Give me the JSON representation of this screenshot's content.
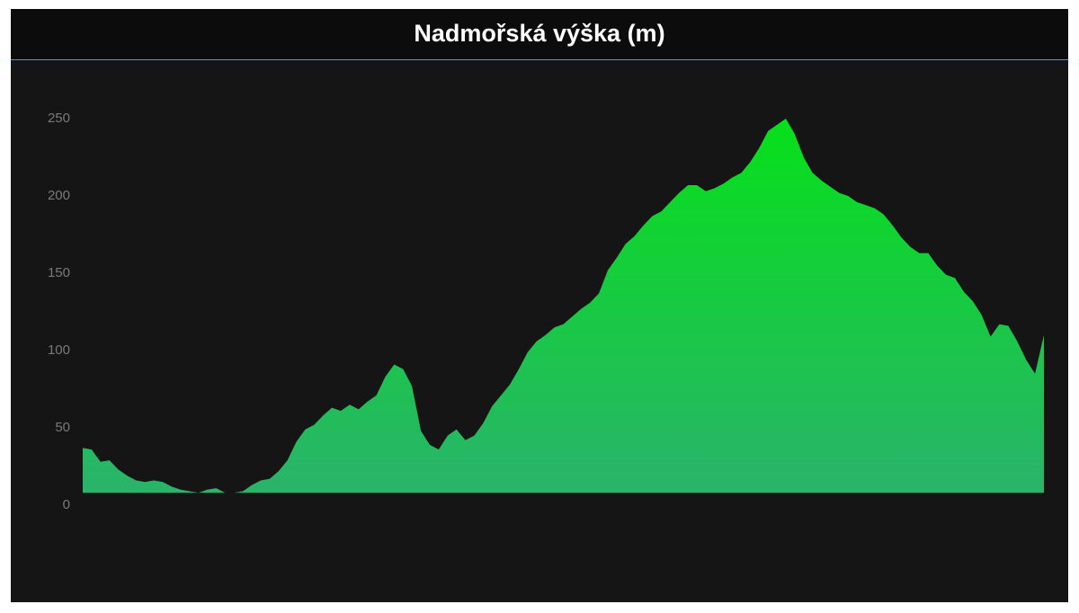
{
  "chart_data": {
    "type": "area",
    "title": "Nadmořská výška (m)",
    "values": [
      37,
      36,
      28,
      29,
      23,
      19,
      16,
      15,
      16,
      15,
      12,
      10,
      9,
      8,
      10,
      11,
      8,
      8,
      9,
      13,
      16,
      17,
      22,
      29,
      41,
      49,
      52,
      58,
      63,
      61,
      65,
      62,
      67,
      71,
      83,
      91,
      88,
      77,
      48,
      39,
      36,
      45,
      49,
      42,
      45,
      53,
      64,
      71,
      78,
      88,
      99,
      106,
      110,
      115,
      117,
      122,
      127,
      131,
      137,
      152,
      160,
      169,
      174,
      181,
      187,
      190,
      196,
      202,
      207,
      207,
      203,
      205,
      208,
      212,
      215,
      222,
      231,
      242,
      246,
      250,
      240,
      225,
      215,
      210,
      206,
      202,
      200,
      196,
      194,
      192,
      188,
      181,
      173,
      167,
      163,
      163,
      155,
      149,
      147,
      138,
      132,
      123,
      109,
      117,
      116,
      106,
      94,
      85,
      110
    ],
    "color_top": "#06e01a",
    "color_bottom": "#2ab36c",
    "ylim": [
      0,
      250
    ],
    "yticks": [
      0,
      50,
      100,
      150,
      200,
      250
    ],
    "grid": false
  }
}
